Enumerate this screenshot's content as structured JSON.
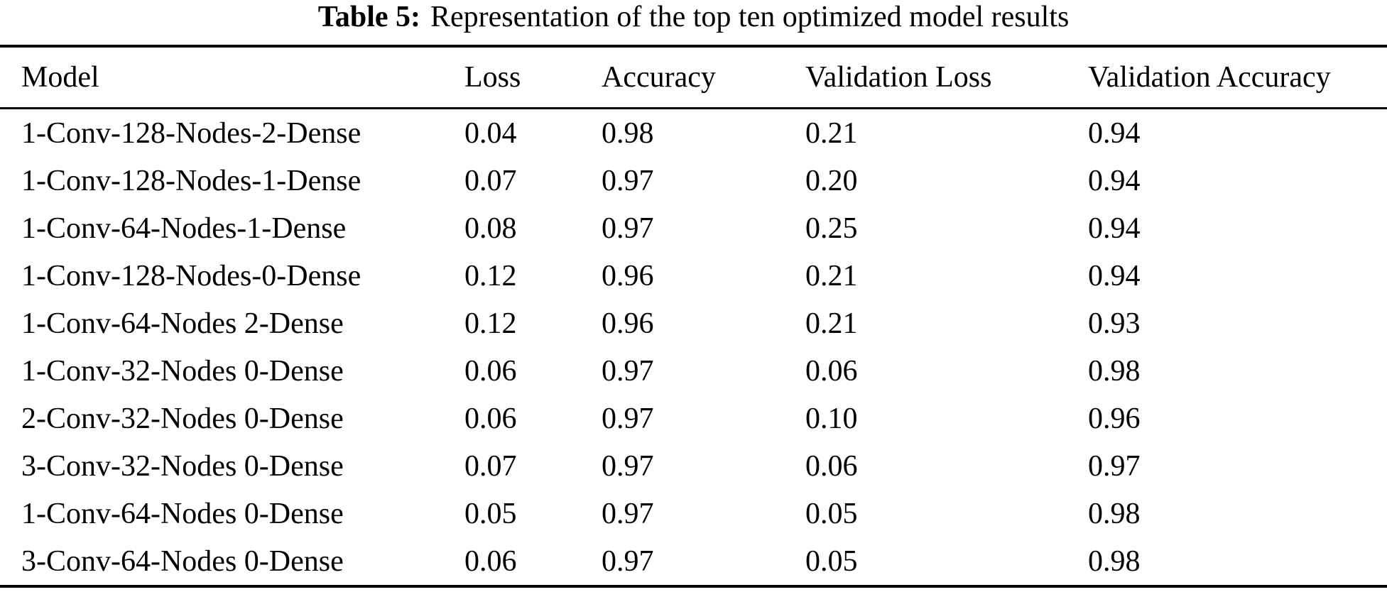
{
  "caption": {
    "label": "Table 5:",
    "text": "Representation of the top ten optimized model results"
  },
  "table": {
    "columns": [
      "Model",
      "Loss",
      "Accuracy",
      "Validation Loss",
      "Validation Accuracy"
    ],
    "rows": [
      {
        "model": "1-Conv-128-Nodes-2-Dense",
        "loss": "0.04",
        "accuracy": "0.98",
        "val_loss": "0.21",
        "val_accuracy": "0.94"
      },
      {
        "model": "1-Conv-128-Nodes-1-Dense",
        "loss": "0.07",
        "accuracy": "0.97",
        "val_loss": "0.20",
        "val_accuracy": "0.94"
      },
      {
        "model": "1-Conv-64-Nodes-1-Dense",
        "loss": "0.08",
        "accuracy": "0.97",
        "val_loss": "0.25",
        "val_accuracy": "0.94"
      },
      {
        "model": "1-Conv-128-Nodes-0-Dense",
        "loss": "0.12",
        "accuracy": "0.96",
        "val_loss": "0.21",
        "val_accuracy": "0.94"
      },
      {
        "model": "1-Conv-64-Nodes 2-Dense",
        "loss": "0.12",
        "accuracy": "0.96",
        "val_loss": "0.21",
        "val_accuracy": "0.93"
      },
      {
        "model": "1-Conv-32-Nodes 0-Dense",
        "loss": "0.06",
        "accuracy": "0.97",
        "val_loss": "0.06",
        "val_accuracy": "0.98"
      },
      {
        "model": "2-Conv-32-Nodes 0-Dense",
        "loss": "0.06",
        "accuracy": "0.97",
        "val_loss": "0.10",
        "val_accuracy": "0.96"
      },
      {
        "model": "3-Conv-32-Nodes 0-Dense",
        "loss": "0.07",
        "accuracy": "0.97",
        "val_loss": "0.06",
        "val_accuracy": "0.97"
      },
      {
        "model": "1-Conv-64-Nodes 0-Dense",
        "loss": "0.05",
        "accuracy": "0.97",
        "val_loss": "0.05",
        "val_accuracy": "0.98"
      },
      {
        "model": "3-Conv-64-Nodes 0-Dense",
        "loss": "0.06",
        "accuracy": "0.97",
        "val_loss": "0.05",
        "val_accuracy": "0.98"
      }
    ],
    "text_color": "#000000",
    "background_color": "#ffffff"
  }
}
